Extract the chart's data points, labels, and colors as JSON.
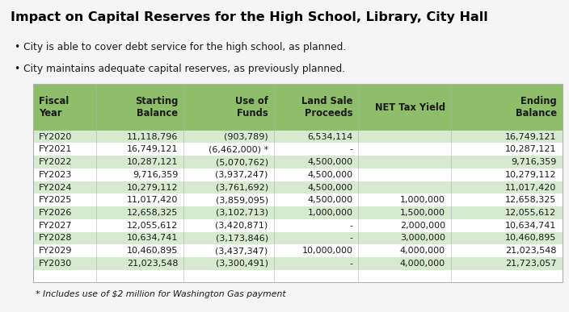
{
  "title": "Impact on Capital Reserves for the High School, Library, City Hall",
  "bullets": [
    "City is able to cover debt service for the high school, as planned.",
    "City maintains adequate capital reserves, as previously planned."
  ],
  "headers": [
    "Fiscal\nYear",
    "Starting\nBalance",
    "Use of\nFunds",
    "Land Sale\nProceeds",
    "NET Tax Yield",
    "Ending\nBalance"
  ],
  "rows": [
    [
      "FY2020",
      "11,118,796",
      "(903,789)",
      "6,534,114",
      "",
      "16,749,121"
    ],
    [
      "FY2021",
      "16,749,121",
      "(6,462,000) *",
      "-",
      "",
      "10,287,121"
    ],
    [
      "FY2022",
      "10,287,121",
      "(5,070,762)",
      "4,500,000",
      "",
      "9,716,359"
    ],
    [
      "FY2023",
      "9,716,359",
      "(3,937,247)",
      "4,500,000",
      "",
      "10,279,112"
    ],
    [
      "FY2024",
      "10,279,112",
      "(3,761,692)",
      "4,500,000",
      "",
      "11,017,420"
    ],
    [
      "FY2025",
      "11,017,420",
      "(3,859,095)",
      "4,500,000",
      "1,000,000",
      "12,658,325"
    ],
    [
      "FY2026",
      "12,658,325",
      "(3,102,713)",
      "1,000,000",
      "1,500,000",
      "12,055,612"
    ],
    [
      "FY2027",
      "12,055,612",
      "(3,420,871)",
      "-",
      "2,000,000",
      "10,634,741"
    ],
    [
      "FY2028",
      "10,634,741",
      "(3,173,846)",
      "-",
      "3,000,000",
      "10,460,895"
    ],
    [
      "FY2029",
      "10,460,895",
      "(3,437,347)",
      "10,000,000",
      "4,000,000",
      "21,023,548"
    ],
    [
      "FY2030",
      "21,023,548",
      "(3,300,491)",
      "-",
      "4,000,000",
      "21,723,057"
    ]
  ],
  "footnote": "* Includes use of $2 million for Washington Gas payment",
  "header_bg": "#8fbe6b",
  "row_bg_alt": "#d6ead0",
  "row_bg_norm": "#ffffff",
  "text_color": "#1a1a1a",
  "header_text_color": "#1a1a1a",
  "title_color": "#000000",
  "bg_color": "#f5f5f5",
  "border_color": "#b0b0b0"
}
